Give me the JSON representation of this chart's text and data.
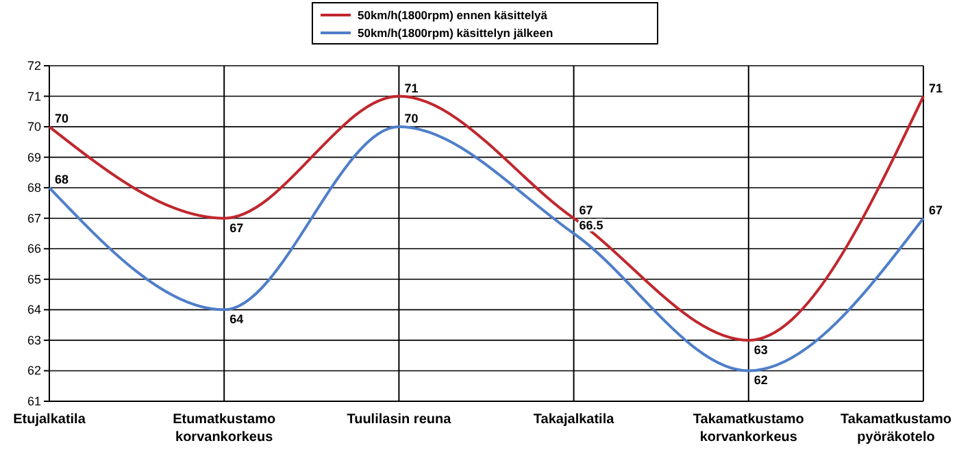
{
  "chart_data": {
    "type": "line",
    "categories": [
      "Etujalkatila",
      "Etumatkustamo\nkorvankorkeus",
      "Tuulilasin reuna",
      "Takajalkatila",
      "Takamatkustamo\nkorvankorkeus",
      "Takamatkustamo\npyöräkotelo"
    ],
    "series": [
      {
        "name": "50km/h(1800rpm) ennen käsittelyä",
        "color": "#c0272d",
        "values": [
          70,
          67,
          71,
          67,
          63,
          71
        ]
      },
      {
        "name": "50km/h(1800rpm) käsittelyn jälkeen",
        "color": "#4f7ec9",
        "values": [
          68,
          64,
          70,
          66.5,
          62,
          67
        ]
      }
    ],
    "ylim": [
      61,
      72
    ],
    "yticks": [
      61,
      62,
      63,
      64,
      65,
      66,
      67,
      68,
      69,
      70,
      71,
      72
    ],
    "grid": true,
    "legend": "top",
    "data_labels": true,
    "marker": "none",
    "line_style": "solid"
  }
}
